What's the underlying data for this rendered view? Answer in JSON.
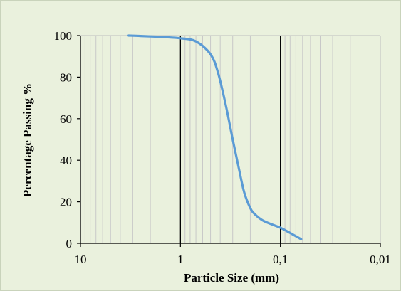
{
  "chart_data": {
    "type": "line",
    "title": "",
    "xlabel": "Particle Size (mm)",
    "ylabel": "Percentage Passing %",
    "x_scale": "log",
    "x_reversed": true,
    "xlim": [
      10,
      0.01
    ],
    "ylim": [
      0,
      100
    ],
    "x_tick_labels": [
      "10",
      "1",
      "0,1",
      "0,01"
    ],
    "y_tick_labels": [
      "0",
      "20",
      "40",
      "60",
      "80",
      "100"
    ],
    "grid": "vertical log minor lines, major lines at each decade",
    "series": [
      {
        "color": "#5b9bd5",
        "x": [
          3.3,
          2.5,
          1.5,
          1.0,
          0.7,
          0.5,
          0.42,
          0.35,
          0.3,
          0.26,
          0.23,
          0.2,
          0.18,
          0.15,
          0.12,
          0.1,
          0.08,
          0.062
        ],
        "y": [
          100,
          99.8,
          99.3,
          98.7,
          97.2,
          91,
          82,
          66,
          50,
          36,
          24.5,
          17,
          14,
          11,
          9,
          7.5,
          5,
          2
        ]
      }
    ]
  }
}
